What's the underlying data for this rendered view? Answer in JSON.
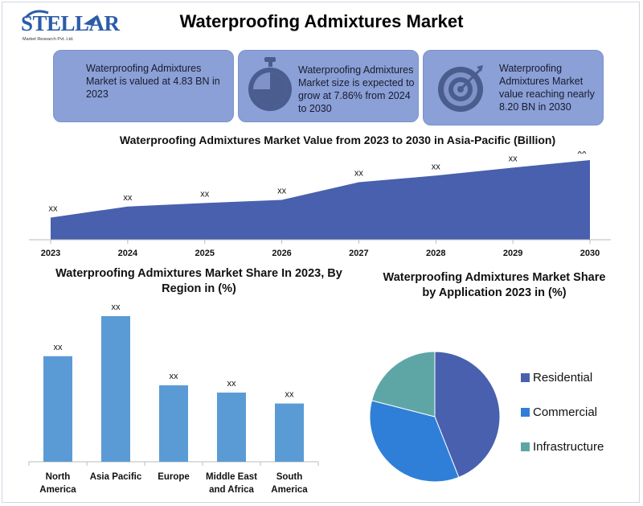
{
  "brand": {
    "name": "STELLAR",
    "subtitle": "Market Research Pvt. Ltd."
  },
  "title": "Waterproofing Admixtures Market",
  "cards": [
    {
      "text": "Waterproofing Admixtures Market is valued at 4.83 BN in 2023"
    },
    {
      "text": "Waterproofing Admixtures Market size is expected to grow at 7.86% from 2024 to 2030",
      "icon": "stopwatch-icon"
    },
    {
      "text": "Waterproofing Admixtures Market value reaching nearly 8.20 BN in 2030",
      "icon": "target-icon"
    }
  ],
  "colors": {
    "area": "#4860ad",
    "bar": "#5b9bd5",
    "card": "#8aa0d6",
    "residential": "#4860ad",
    "commercial": "#2f7fd8",
    "infrastructure": "#5ea6a6"
  },
  "chart_data": [
    {
      "type": "area",
      "title": "Waterproofing Admixtures Market Value from 2023 to 2030 in Asia-Pacific (Billion)",
      "x": [
        "2023",
        "2024",
        "2025",
        "2026",
        "2027",
        "2028",
        "2029",
        "2030"
      ],
      "values": [
        5.0,
        7.5,
        8.3,
        9.0,
        13.0,
        14.5,
        16.3,
        18.0
      ],
      "data_labels": [
        "xx",
        "xx",
        "xx",
        "xx",
        "xx",
        "xx",
        "xx",
        "xx"
      ],
      "ylim": [
        0,
        20
      ],
      "grid": false
    },
    {
      "type": "bar",
      "title": "Waterproofing Admixtures Market Share In 2023, By Region in (%)",
      "categories": [
        "North America",
        "Asia Pacific",
        "Europe",
        "Middle East and Africa",
        "South America"
      ],
      "values": [
        29,
        40,
        21,
        19,
        16
      ],
      "data_labels": [
        "xx",
        "xx",
        "xx",
        "xx",
        "xx"
      ],
      "ylim": [
        0,
        45
      ],
      "grid": false
    },
    {
      "type": "pie",
      "title": "Waterproofing Admixtures Market Share by Application 2023 in (%)",
      "categories": [
        "Residential",
        "Commercial",
        "Infrastructure"
      ],
      "values": [
        44,
        35,
        21
      ],
      "legend": "right"
    }
  ]
}
